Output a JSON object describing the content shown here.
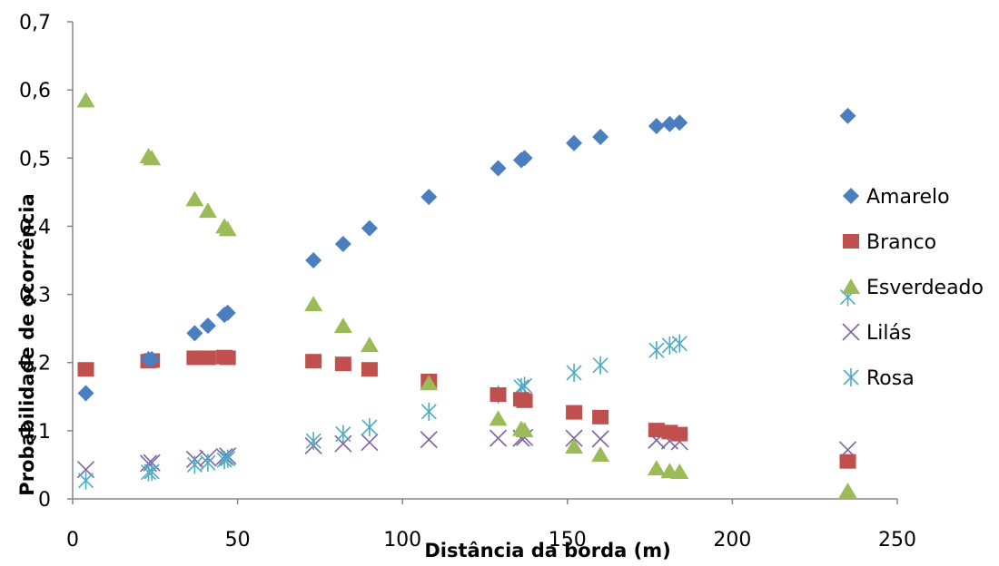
{
  "chart_data": {
    "type": "scatter",
    "title": "",
    "xlabel": "Distância da borda (m)",
    "ylabel": "Probabilidade de ocorrência",
    "xlim": [
      0,
      250
    ],
    "ylim": [
      0,
      0.7
    ],
    "x_ticks": [
      "0",
      "50",
      "100",
      "150",
      "200",
      "250"
    ],
    "y_ticks": [
      "0",
      "0,1",
      "0,2",
      "0,3",
      "0,4",
      "0,5",
      "0,6",
      "0,7"
    ],
    "grid": false,
    "legend_position": "right",
    "series": [
      {
        "name": "Amarelo",
        "marker": "diamond",
        "color": "#4a7ebf",
        "x": [
          4,
          23,
          24,
          37,
          41,
          46,
          47,
          73,
          82,
          90,
          108,
          129,
          136,
          137,
          152,
          160,
          177,
          181,
          184,
          235
        ],
        "y": [
          0.155,
          0.205,
          0.205,
          0.243,
          0.254,
          0.27,
          0.273,
          0.35,
          0.374,
          0.397,
          0.443,
          0.485,
          0.497,
          0.5,
          0.522,
          0.531,
          0.547,
          0.55,
          0.552,
          0.562
        ]
      },
      {
        "name": "Branco",
        "marker": "square",
        "color": "#c0504d",
        "x": [
          4,
          23,
          24,
          37,
          41,
          46,
          47,
          73,
          82,
          90,
          108,
          129,
          136,
          137,
          152,
          160,
          177,
          181,
          184,
          235
        ],
        "y": [
          0.19,
          0.202,
          0.203,
          0.207,
          0.207,
          0.208,
          0.207,
          0.202,
          0.198,
          0.19,
          0.173,
          0.153,
          0.146,
          0.144,
          0.127,
          0.12,
          0.101,
          0.098,
          0.095,
          0.055
        ]
      },
      {
        "name": "Esverdeado",
        "marker": "triangle",
        "color": "#9bbb59",
        "x": [
          4,
          23,
          24,
          37,
          41,
          46,
          47,
          73,
          82,
          90,
          108,
          129,
          136,
          137,
          152,
          160,
          177,
          181,
          184,
          235
        ],
        "y": [
          0.585,
          0.503,
          0.5,
          0.44,
          0.423,
          0.4,
          0.396,
          0.286,
          0.254,
          0.226,
          0.17,
          0.118,
          0.103,
          0.101,
          0.077,
          0.065,
          0.045,
          0.041,
          0.04,
          0.012
        ]
      },
      {
        "name": "Lilás",
        "marker": "x",
        "color": "#8064a2",
        "x": [
          4,
          23,
          24,
          37,
          41,
          46,
          47,
          73,
          82,
          90,
          108,
          129,
          136,
          137,
          152,
          160,
          177,
          181,
          184,
          235
        ],
        "y": [
          0.043,
          0.052,
          0.053,
          0.058,
          0.06,
          0.062,
          0.063,
          0.078,
          0.081,
          0.083,
          0.087,
          0.089,
          0.089,
          0.09,
          0.089,
          0.088,
          0.086,
          0.085,
          0.084,
          0.072
        ]
      },
      {
        "name": "Rosa",
        "marker": "star",
        "color": "#4bacc6",
        "x": [
          4,
          23,
          24,
          37,
          41,
          46,
          47,
          73,
          82,
          90,
          108,
          129,
          136,
          137,
          152,
          160,
          177,
          181,
          184,
          235
        ],
        "y": [
          0.027,
          0.039,
          0.04,
          0.05,
          0.053,
          0.057,
          0.059,
          0.085,
          0.095,
          0.105,
          0.128,
          0.153,
          0.164,
          0.166,
          0.185,
          0.196,
          0.218,
          0.225,
          0.228,
          0.296
        ]
      }
    ]
  }
}
